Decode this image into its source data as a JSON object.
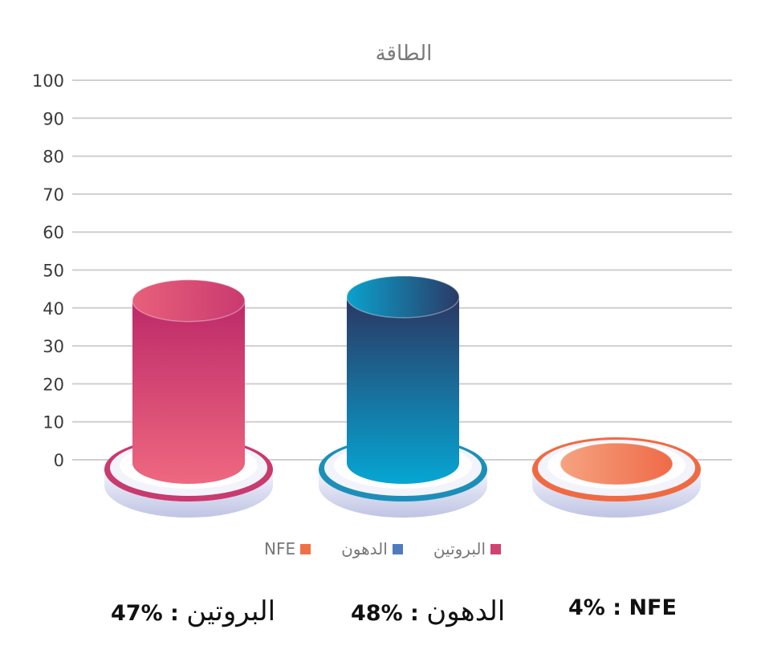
{
  "chart_data": {
    "type": "bar",
    "title": "الطاقة",
    "categories": [
      "البروتين",
      "الدهون",
      "NFE"
    ],
    "values": [
      47,
      48,
      4
    ],
    "ylim": [
      0,
      100
    ],
    "yticks": [
      0,
      10,
      20,
      30,
      40,
      50,
      60,
      70,
      80,
      90,
      100
    ],
    "grid": true,
    "legend_position": "bottom",
    "series_colors": [
      "#d0426f",
      "#4e7cbf",
      "#f07046"
    ],
    "legend": [
      "البروتين",
      "الدهون",
      "NFE"
    ]
  },
  "summary": [
    {
      "label": "البروتين",
      "value": "47%"
    },
    {
      "label": "الدهون",
      "value": "48%"
    },
    {
      "label": "NFE",
      "value": "4%"
    }
  ]
}
